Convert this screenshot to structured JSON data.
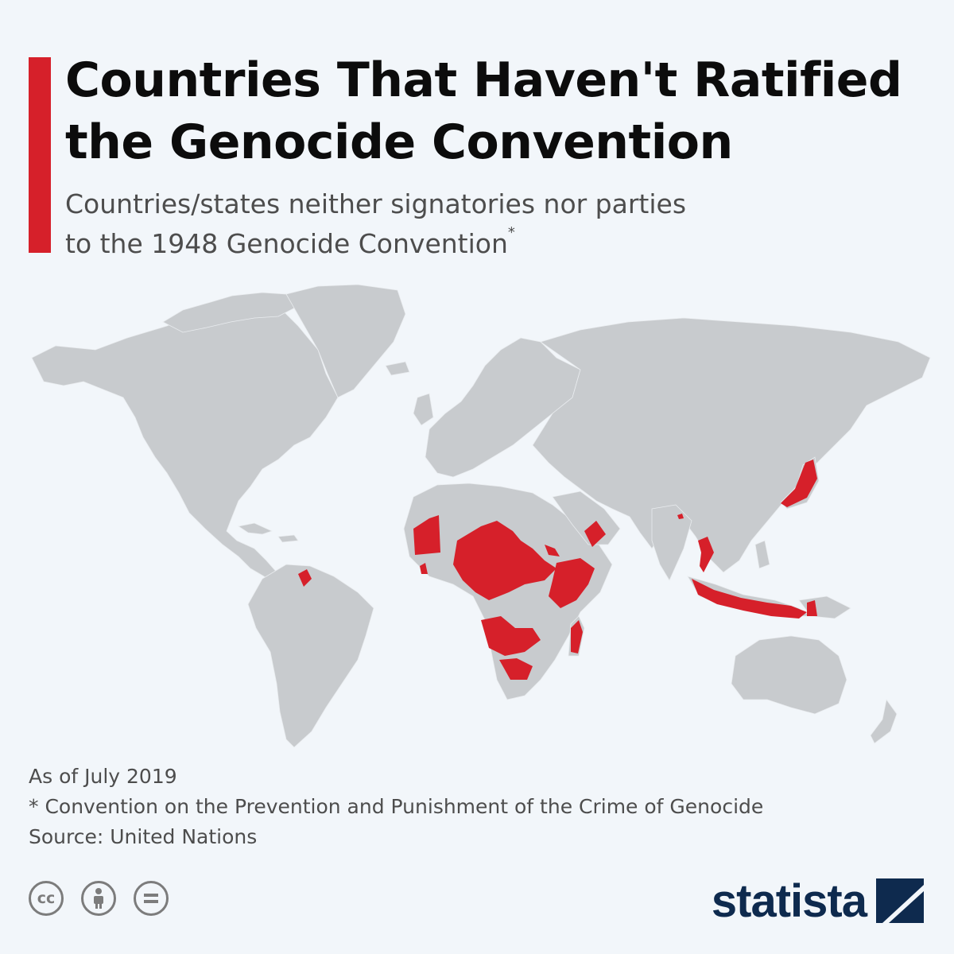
{
  "header": {
    "title_line1": "Countries That Haven't Ratified",
    "title_line2": "the Genocide Convention",
    "subtitle_line1": "Countries/states neither signatories nor parties",
    "subtitle_line2": "to the 1948 Genocide Convention",
    "subtitle_marker": "*"
  },
  "map": {
    "highlight_color": "#d6202a",
    "land_color": "#c8cbce",
    "ocean_color": "#f2f6fa",
    "status": "Neither signatory nor party"
  },
  "footer": {
    "as_of": "As of July 2019",
    "footnote": "* Convention on the Prevention and Punishment of the Crime of Genocide",
    "source": "Source: United Nations"
  },
  "license_icons": [
    "cc-icon",
    "attribution-icon",
    "no-derivatives-icon"
  ],
  "brand": {
    "name": "statista",
    "color": "#0e2a4e"
  }
}
